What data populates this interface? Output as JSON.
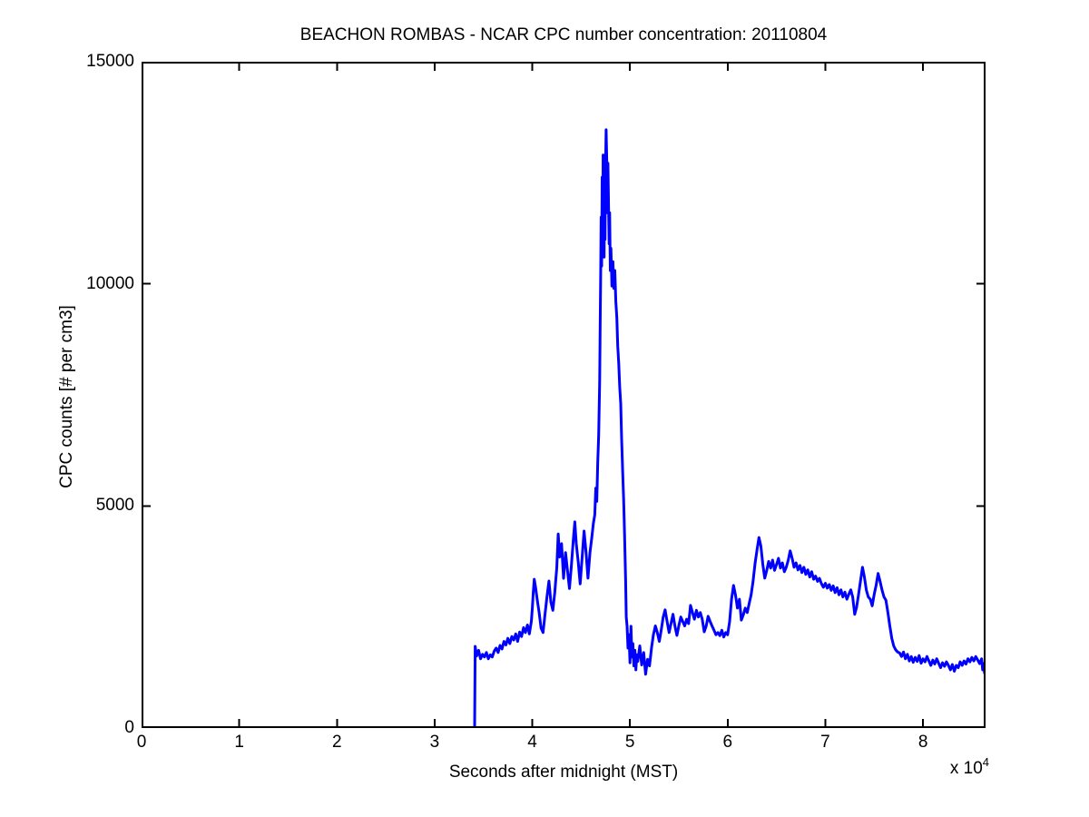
{
  "chart_data": {
    "type": "line",
    "title": "BEACHON ROMBAS - NCAR CPC number concentration: 20110804",
    "xlabel": "Seconds after midnight (MST)",
    "ylabel": "CPC counts [# per cm3]",
    "x_multiplier": {
      "base": "x 10",
      "exponent": "4"
    },
    "xlim": [
      0,
      86400
    ],
    "ylim": [
      0,
      15000
    ],
    "grid": false,
    "legend": "none",
    "axis_color": "#000000",
    "background_color": "#ffffff",
    "line_color": "#0000ff",
    "line_width": 3,
    "xticks": {
      "values": [
        0,
        10000,
        20000,
        30000,
        40000,
        50000,
        60000,
        70000,
        80000
      ],
      "labels": [
        "0",
        "1",
        "2",
        "3",
        "4",
        "5",
        "6",
        "7",
        "8"
      ]
    },
    "yticks": {
      "values": [
        0,
        5000,
        10000,
        15000
      ],
      "labels": [
        "0",
        "5000",
        "10000",
        "15000"
      ]
    },
    "series": [
      {
        "name": "CPC number concentration",
        "points": [
          [
            34100,
            0
          ],
          [
            34150,
            1840
          ],
          [
            34300,
            1620
          ],
          [
            34500,
            1750
          ],
          [
            34700,
            1560
          ],
          [
            34900,
            1660
          ],
          [
            35100,
            1600
          ],
          [
            35300,
            1700
          ],
          [
            35500,
            1560
          ],
          [
            35700,
            1650
          ],
          [
            35900,
            1600
          ],
          [
            36100,
            1730
          ],
          [
            36300,
            1800
          ],
          [
            36500,
            1700
          ],
          [
            36700,
            1860
          ],
          [
            36900,
            1780
          ],
          [
            37100,
            1950
          ],
          [
            37300,
            1870
          ],
          [
            37500,
            2020
          ],
          [
            37700,
            1900
          ],
          [
            37900,
            2060
          ],
          [
            38100,
            1980
          ],
          [
            38300,
            2120
          ],
          [
            38500,
            1950
          ],
          [
            38700,
            2160
          ],
          [
            38900,
            2060
          ],
          [
            39100,
            2260
          ],
          [
            39300,
            2150
          ],
          [
            39500,
            2320
          ],
          [
            39700,
            2120
          ],
          [
            39900,
            2400
          ],
          [
            40000,
            2700
          ],
          [
            40100,
            3050
          ],
          [
            40200,
            3350
          ],
          [
            40350,
            3150
          ],
          [
            40500,
            2900
          ],
          [
            40700,
            2600
          ],
          [
            40900,
            2250
          ],
          [
            41100,
            2150
          ],
          [
            41300,
            2550
          ],
          [
            41500,
            2950
          ],
          [
            41700,
            3310
          ],
          [
            41900,
            2840
          ],
          [
            42100,
            2650
          ],
          [
            42300,
            3050
          ],
          [
            42500,
            3600
          ],
          [
            42650,
            4370
          ],
          [
            42800,
            3850
          ],
          [
            43000,
            4150
          ],
          [
            43200,
            3370
          ],
          [
            43400,
            3950
          ],
          [
            43600,
            3550
          ],
          [
            43800,
            3140
          ],
          [
            44000,
            3650
          ],
          [
            44200,
            4250
          ],
          [
            44350,
            4640
          ],
          [
            44500,
            4150
          ],
          [
            44700,
            3750
          ],
          [
            44900,
            3245
          ],
          [
            45100,
            3850
          ],
          [
            45300,
            4435
          ],
          [
            45500,
            3950
          ],
          [
            45700,
            3373
          ],
          [
            45900,
            3950
          ],
          [
            46100,
            4300
          ],
          [
            46250,
            4600
          ],
          [
            46400,
            4800
          ],
          [
            46500,
            5400
          ],
          [
            46600,
            5100
          ],
          [
            46700,
            6000
          ],
          [
            46800,
            6600
          ],
          [
            46900,
            7800
          ],
          [
            46950,
            9200
          ],
          [
            47000,
            10200
          ],
          [
            47050,
            11500
          ],
          [
            47100,
            10400
          ],
          [
            47150,
            12400
          ],
          [
            47200,
            11200
          ],
          [
            47250,
            12900
          ],
          [
            47300,
            11800
          ],
          [
            47350,
            10600
          ],
          [
            47400,
            12200
          ],
          [
            47450,
            11000
          ],
          [
            47500,
            12700
          ],
          [
            47560,
            13470
          ],
          [
            47620,
            12800
          ],
          [
            47680,
            11600
          ],
          [
            47740,
            12715
          ],
          [
            47800,
            11900
          ],
          [
            47860,
            10900
          ],
          [
            47920,
            11600
          ],
          [
            47980,
            10300
          ],
          [
            48050,
            10800
          ],
          [
            48150,
            9950
          ],
          [
            48250,
            10500
          ],
          [
            48350,
            9900
          ],
          [
            48450,
            10300
          ],
          [
            48550,
            9600
          ],
          [
            48650,
            9240
          ],
          [
            48750,
            8600
          ],
          [
            48850,
            8210
          ],
          [
            48950,
            7670
          ],
          [
            49050,
            7300
          ],
          [
            49150,
            6500
          ],
          [
            49250,
            5800
          ],
          [
            49350,
            5150
          ],
          [
            49450,
            4300
          ],
          [
            49550,
            3310
          ],
          [
            49620,
            2500
          ],
          [
            49700,
            2290
          ],
          [
            49800,
            1800
          ],
          [
            49900,
            2100
          ],
          [
            50000,
            1470
          ],
          [
            50100,
            2290
          ],
          [
            50200,
            1600
          ],
          [
            50300,
            1900
          ],
          [
            50400,
            1400
          ],
          [
            50500,
            1750
          ],
          [
            50600,
            1310
          ],
          [
            50700,
            1650
          ],
          [
            50800,
            1500
          ],
          [
            51000,
            1850
          ],
          [
            51200,
            1420
          ],
          [
            51400,
            1700
          ],
          [
            51600,
            1210
          ],
          [
            51800,
            1550
          ],
          [
            52000,
            1400
          ],
          [
            52200,
            1800
          ],
          [
            52400,
            2100
          ],
          [
            52600,
            2300
          ],
          [
            52800,
            2150
          ],
          [
            53000,
            1950
          ],
          [
            53200,
            2200
          ],
          [
            53400,
            2500
          ],
          [
            53600,
            2660
          ],
          [
            53800,
            2400
          ],
          [
            54000,
            2150
          ],
          [
            54200,
            2350
          ],
          [
            54400,
            2560
          ],
          [
            54600,
            2300
          ],
          [
            54800,
            2085
          ],
          [
            55000,
            2300
          ],
          [
            55200,
            2500
          ],
          [
            55400,
            2400
          ],
          [
            55600,
            2300
          ],
          [
            55800,
            2450
          ],
          [
            56000,
            2350
          ],
          [
            56200,
            2760
          ],
          [
            56400,
            2600
          ],
          [
            56600,
            2450
          ],
          [
            56800,
            2650
          ],
          [
            57000,
            2500
          ],
          [
            57200,
            2600
          ],
          [
            57400,
            2450
          ],
          [
            57600,
            2166
          ],
          [
            57800,
            2300
          ],
          [
            58000,
            2515
          ],
          [
            58200,
            2400
          ],
          [
            58400,
            2300
          ],
          [
            58600,
            2200
          ],
          [
            58800,
            2100
          ],
          [
            59000,
            2150
          ],
          [
            59200,
            2080
          ],
          [
            59400,
            2200
          ],
          [
            59600,
            2050
          ],
          [
            59800,
            2150
          ],
          [
            60000,
            2100
          ],
          [
            60200,
            2400
          ],
          [
            60400,
            2900
          ],
          [
            60600,
            3210
          ],
          [
            60800,
            3000
          ],
          [
            61000,
            2700
          ],
          [
            61200,
            2900
          ],
          [
            61400,
            2430
          ],
          [
            61600,
            2550
          ],
          [
            61800,
            2700
          ],
          [
            62000,
            2600
          ],
          [
            62200,
            2800
          ],
          [
            62400,
            3000
          ],
          [
            62600,
            3300
          ],
          [
            62800,
            3700
          ],
          [
            63000,
            4000
          ],
          [
            63200,
            4290
          ],
          [
            63400,
            4100
          ],
          [
            63600,
            3680
          ],
          [
            63800,
            3373
          ],
          [
            64000,
            3550
          ],
          [
            64200,
            3750
          ],
          [
            64400,
            3600
          ],
          [
            64600,
            3780
          ],
          [
            64800,
            3550
          ],
          [
            65000,
            3680
          ],
          [
            65200,
            3820
          ],
          [
            65400,
            3600
          ],
          [
            65600,
            3720
          ],
          [
            65800,
            3520
          ],
          [
            66000,
            3620
          ],
          [
            66200,
            3780
          ],
          [
            66400,
            3990
          ],
          [
            66600,
            3820
          ],
          [
            66800,
            3620
          ],
          [
            67000,
            3720
          ],
          [
            67200,
            3560
          ],
          [
            67400,
            3660
          ],
          [
            67600,
            3500
          ],
          [
            67800,
            3620
          ],
          [
            68000,
            3460
          ],
          [
            68200,
            3560
          ],
          [
            68400,
            3400
          ],
          [
            68600,
            3520
          ],
          [
            68800,
            3350
          ],
          [
            69000,
            3420
          ],
          [
            69200,
            3300
          ],
          [
            69400,
            3370
          ],
          [
            69600,
            3250
          ],
          [
            69800,
            3170
          ],
          [
            70000,
            3260
          ],
          [
            70200,
            3150
          ],
          [
            70400,
            3230
          ],
          [
            70600,
            3100
          ],
          [
            70800,
            3200
          ],
          [
            71000,
            3050
          ],
          [
            71200,
            3160
          ],
          [
            71400,
            3000
          ],
          [
            71600,
            3110
          ],
          [
            71800,
            2950
          ],
          [
            72000,
            3060
          ],
          [
            72200,
            2900
          ],
          [
            72400,
            3010
          ],
          [
            72600,
            3110
          ],
          [
            72800,
            2950
          ],
          [
            73000,
            2560
          ],
          [
            73200,
            2720
          ],
          [
            73400,
            3010
          ],
          [
            73600,
            3310
          ],
          [
            73800,
            3620
          ],
          [
            74000,
            3400
          ],
          [
            74200,
            3100
          ],
          [
            74400,
            2950
          ],
          [
            74600,
            2900
          ],
          [
            74800,
            2750
          ],
          [
            75000,
            3010
          ],
          [
            75200,
            3210
          ],
          [
            75400,
            3480
          ],
          [
            75600,
            3300
          ],
          [
            75800,
            3110
          ],
          [
            76000,
            2950
          ],
          [
            76200,
            2880
          ],
          [
            76400,
            2600
          ],
          [
            76600,
            2300
          ],
          [
            76800,
            2020
          ],
          [
            77000,
            1850
          ],
          [
            77200,
            1760
          ],
          [
            77400,
            1710
          ],
          [
            77600,
            1690
          ],
          [
            77800,
            1610
          ],
          [
            78000,
            1710
          ],
          [
            78200,
            1560
          ],
          [
            78400,
            1660
          ],
          [
            78600,
            1510
          ],
          [
            78800,
            1610
          ],
          [
            79000,
            1480
          ],
          [
            79200,
            1590
          ],
          [
            79400,
            1500
          ],
          [
            79600,
            1630
          ],
          [
            79800,
            1460
          ],
          [
            80000,
            1560
          ],
          [
            80200,
            1490
          ],
          [
            80400,
            1610
          ],
          [
            80600,
            1510
          ],
          [
            80800,
            1410
          ],
          [
            81000,
            1530
          ],
          [
            81200,
            1440
          ],
          [
            81400,
            1560
          ],
          [
            81600,
            1460
          ],
          [
            81800,
            1360
          ],
          [
            82000,
            1470
          ],
          [
            82200,
            1390
          ],
          [
            82400,
            1490
          ],
          [
            82600,
            1410
          ],
          [
            82800,
            1310
          ],
          [
            83000,
            1430
          ],
          [
            83200,
            1280
          ],
          [
            83400,
            1410
          ],
          [
            83600,
            1360
          ],
          [
            83800,
            1490
          ],
          [
            84000,
            1410
          ],
          [
            84200,
            1510
          ],
          [
            84400,
            1440
          ],
          [
            84600,
            1560
          ],
          [
            84800,
            1490
          ],
          [
            85000,
            1590
          ],
          [
            85200,
            1510
          ],
          [
            85400,
            1610
          ],
          [
            85600,
            1530
          ],
          [
            85800,
            1450
          ],
          [
            86000,
            1560
          ],
          [
            86100,
            1310
          ],
          [
            86200,
            1450
          ],
          [
            86300,
            1240
          ],
          [
            86400,
            1410
          ]
        ]
      }
    ]
  }
}
